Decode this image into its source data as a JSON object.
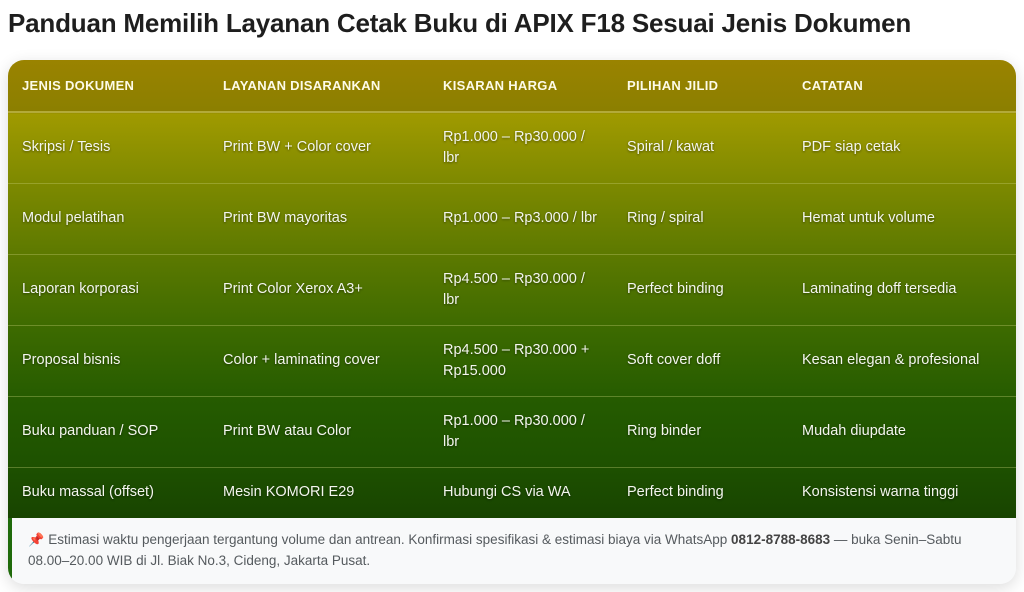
{
  "title": "Panduan Memilih Layanan Cetak Buku di APIX F18 Sesuai Jenis Dokumen",
  "table": {
    "headers": [
      "JENIS DOKUMEN",
      "LAYANAN DISARANKAN",
      "KISARAN HARGA",
      "PILIHAN JILID",
      "CATATAN"
    ],
    "rows": [
      [
        "Skripsi / Tesis",
        "Print BW + Color cover",
        "Rp1.000 – Rp30.000 / lbr",
        "Spiral / kawat",
        "PDF siap cetak"
      ],
      [
        "Modul pelatihan",
        "Print BW mayoritas",
        "Rp1.000 – Rp3.000 / lbr",
        "Ring / spiral",
        "Hemat untuk volume"
      ],
      [
        "Laporan korporasi",
        "Print Color Xerox A3+",
        "Rp4.500 – Rp30.000 / lbr",
        "Perfect binding",
        "Laminating doff tersedia"
      ],
      [
        "Proposal bisnis",
        "Color + laminating cover",
        "Rp4.500 – Rp30.000 + Rp15.000",
        "Soft cover doff",
        "Kesan elegan & profesional"
      ],
      [
        "Buku panduan / SOP",
        "Print BW atau Color",
        "Rp1.000 – Rp30.000 / lbr",
        "Ring binder",
        "Mudah diupdate"
      ],
      [
        "Buku massal (offset)",
        "Mesin KOMORI E29",
        "Hubungi CS via WA",
        "Perfect binding",
        "Konsistensi warna tinggi"
      ]
    ]
  },
  "note": {
    "icon": "pushpin-icon",
    "icon_glyph": "📌",
    "text_before": "Estimasi waktu pengerjaan tergantung volume dan antrean. Konfirmasi spesifikasi & estimasi biaya via WhatsApp ",
    "phone": "0812-8788-8683",
    "text_after": " — buka Senin–Sabtu 08.00–20.00 WIB di Jl. Biak No.3, Cideng, Jakarta Pusat."
  },
  "colors": {
    "header_top": "#9a8300",
    "body_top": "#a09a00",
    "body_bottom": "#184400",
    "note_border": "#1f6a0a"
  }
}
